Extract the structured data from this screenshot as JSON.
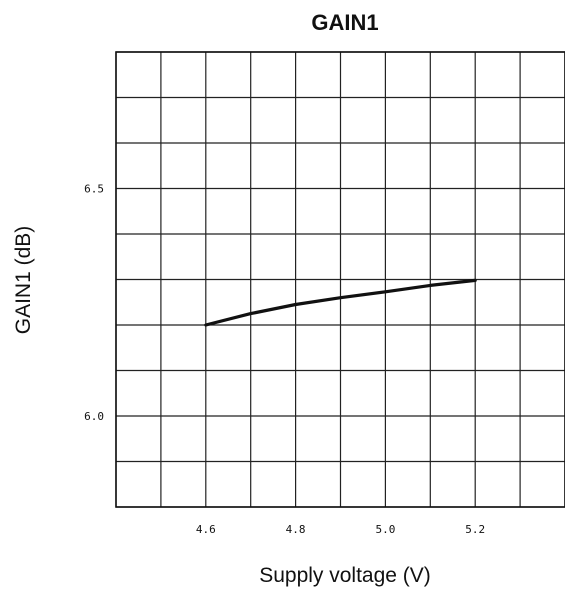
{
  "chart_data": {
    "type": "line",
    "title": "GAIN1",
    "xlabel": "Supply voltage (V)",
    "ylabel": "GAIN1 (dB)",
    "xlim": [
      4.4,
      5.4
    ],
    "ylim": [
      5.8,
      6.8
    ],
    "x_ticks": [
      4.4,
      4.5,
      4.6,
      4.7,
      4.8,
      4.9,
      5.0,
      5.1,
      5.2,
      5.3,
      5.4
    ],
    "y_ticks": [
      5.8,
      5.9,
      6.0,
      6.1,
      6.2,
      6.3,
      6.4,
      6.5,
      6.6,
      6.7,
      6.8
    ],
    "x_tick_labels": [
      {
        "value": 4.6,
        "label": "4.6"
      },
      {
        "value": 4.8,
        "label": "4.8"
      },
      {
        "value": 5.0,
        "label": "5.0"
      },
      {
        "value": 5.2,
        "label": "5.2"
      }
    ],
    "y_tick_labels": [
      {
        "value": 6.5,
        "label": "6.5"
      },
      {
        "value": 6.0,
        "label": "6.0"
      }
    ],
    "grid": true,
    "line_color": "#111111",
    "grid_color": "#222222",
    "series": [
      {
        "x": [
          4.6,
          4.7,
          4.8,
          4.9,
          5.0,
          5.1,
          5.2
        ],
        "y": [
          6.2,
          6.225,
          6.245,
          6.26,
          6.273,
          6.287,
          6.298
        ]
      }
    ]
  }
}
